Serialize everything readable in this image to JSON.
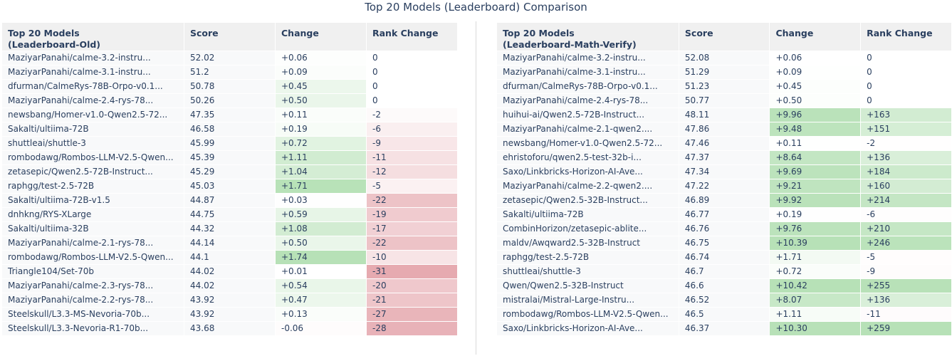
{
  "chart_data": {
    "type": "table",
    "title": "Top 20 Models (Leaderboard) Comparison",
    "colors": {
      "header_bg": "#f0f0f0",
      "cell_bg": "#f8f9fa",
      "positive_max": "#b7e1b7",
      "negative_max": "#e6aab0",
      "text": "#2a3f5f"
    },
    "tables": [
      {
        "header_model_lines": [
          "Top 20 Models",
          "(Leaderboard-Old)"
        ],
        "columns": [
          "Score",
          "Change",
          "Rank Change"
        ],
        "rows": [
          {
            "model": "MaziyarPanahi/calme-3.2-instru...",
            "score": "52.02",
            "change": "+0.06",
            "rank_change": "0"
          },
          {
            "model": "MaziyarPanahi/calme-3.1-instru...",
            "score": "51.2",
            "change": "+0.09",
            "rank_change": "0"
          },
          {
            "model": "dfurman/CalmeRys-78B-Orpo-v0.1...",
            "score": "50.78",
            "change": "+0.45",
            "rank_change": "0"
          },
          {
            "model": "MaziyarPanahi/calme-2.4-rys-78...",
            "score": "50.26",
            "change": "+0.50",
            "rank_change": "0"
          },
          {
            "model": "newsbang/Homer-v1.0-Qwen2.5-72...",
            "score": "47.35",
            "change": "+0.11",
            "rank_change": "-2"
          },
          {
            "model": "Sakalti/ultiima-72B",
            "score": "46.58",
            "change": "+0.19",
            "rank_change": "-6"
          },
          {
            "model": "shuttleai/shuttle-3",
            "score": "45.99",
            "change": "+0.72",
            "rank_change": "-9"
          },
          {
            "model": "rombodawg/Rombos-LLM-V2.5-Qwen...",
            "score": "45.39",
            "change": "+1.11",
            "rank_change": "-11"
          },
          {
            "model": "zetasepic/Qwen2.5-72B-Instruct...",
            "score": "45.29",
            "change": "+1.04",
            "rank_change": "-12"
          },
          {
            "model": "raphgg/test-2.5-72B",
            "score": "45.03",
            "change": "+1.71",
            "rank_change": "-5"
          },
          {
            "model": "Sakalti/ultiima-72B-v1.5",
            "score": "44.87",
            "change": "+0.03",
            "rank_change": "-22"
          },
          {
            "model": "dnhkng/RYS-XLarge",
            "score": "44.75",
            "change": "+0.59",
            "rank_change": "-19"
          },
          {
            "model": "Sakalti/ultiima-32B",
            "score": "44.32",
            "change": "+1.08",
            "rank_change": "-17"
          },
          {
            "model": "MaziyarPanahi/calme-2.1-rys-78...",
            "score": "44.14",
            "change": "+0.50",
            "rank_change": "-22"
          },
          {
            "model": "rombodawg/Rombos-LLM-V2.5-Qwen...",
            "score": "44.1",
            "change": "+1.74",
            "rank_change": "-10"
          },
          {
            "model": "Triangle104/Set-70b",
            "score": "44.02",
            "change": "+0.01",
            "rank_change": "-31"
          },
          {
            "model": "MaziyarPanahi/calme-2.3-rys-78...",
            "score": "44.02",
            "change": "+0.54",
            "rank_change": "-20"
          },
          {
            "model": "MaziyarPanahi/calme-2.2-rys-78...",
            "score": "43.92",
            "change": "+0.47",
            "rank_change": "-21"
          },
          {
            "model": "Steelskull/L3.3-MS-Nevoria-70b...",
            "score": "43.92",
            "change": "+0.13",
            "rank_change": "-27"
          },
          {
            "model": "Steelskull/L3.3-Nevoria-R1-70b...",
            "score": "43.68",
            "change": "-0.06",
            "rank_change": "-28"
          }
        ]
      },
      {
        "header_model_lines": [
          "Top 20 Models",
          "(Leaderboard-Math-Verify)"
        ],
        "columns": [
          "Score",
          "Change",
          "Rank Change"
        ],
        "rows": [
          {
            "model": "MaziyarPanahi/calme-3.2-instru...",
            "score": "52.08",
            "change": "+0.06",
            "rank_change": "0"
          },
          {
            "model": "MaziyarPanahi/calme-3.1-instru...",
            "score": "51.29",
            "change": "+0.09",
            "rank_change": "0"
          },
          {
            "model": "dfurman/CalmeRys-78B-Orpo-v0.1...",
            "score": "51.23",
            "change": "+0.45",
            "rank_change": "0"
          },
          {
            "model": "MaziyarPanahi/calme-2.4-rys-78...",
            "score": "50.77",
            "change": "+0.50",
            "rank_change": "0"
          },
          {
            "model": "huihui-ai/Qwen2.5-72B-Instruct...",
            "score": "48.11",
            "change": "+9.96",
            "rank_change": "+163"
          },
          {
            "model": "MaziyarPanahi/calme-2.1-qwen2....",
            "score": "47.86",
            "change": "+9.48",
            "rank_change": "+151"
          },
          {
            "model": "newsbang/Homer-v1.0-Qwen2.5-72...",
            "score": "47.46",
            "change": "+0.11",
            "rank_change": "-2"
          },
          {
            "model": "ehristoforu/qwen2.5-test-32b-i...",
            "score": "47.37",
            "change": "+8.64",
            "rank_change": "+136"
          },
          {
            "model": "Saxo/Linkbricks-Horizon-AI-Ave...",
            "score": "47.34",
            "change": "+9.69",
            "rank_change": "+184"
          },
          {
            "model": "MaziyarPanahi/calme-2.2-qwen2....",
            "score": "47.22",
            "change": "+9.21",
            "rank_change": "+160"
          },
          {
            "model": "zetasepic/Qwen2.5-32B-Instruct...",
            "score": "46.89",
            "change": "+9.92",
            "rank_change": "+214"
          },
          {
            "model": "Sakalti/ultiima-72B",
            "score": "46.77",
            "change": "+0.19",
            "rank_change": "-6"
          },
          {
            "model": "CombinHorizon/zetasepic-ablite...",
            "score": "46.76",
            "change": "+9.76",
            "rank_change": "+210"
          },
          {
            "model": "maldv/Awqward2.5-32B-Instruct",
            "score": "46.75",
            "change": "+10.39",
            "rank_change": "+246"
          },
          {
            "model": "raphgg/test-2.5-72B",
            "score": "46.74",
            "change": "+1.71",
            "rank_change": "-5"
          },
          {
            "model": "shuttleai/shuttle-3",
            "score": "46.7",
            "change": "+0.72",
            "rank_change": "-9"
          },
          {
            "model": "Qwen/Qwen2.5-32B-Instruct",
            "score": "46.6",
            "change": "+10.42",
            "rank_change": "+255"
          },
          {
            "model": "mistralai/Mistral-Large-Instru...",
            "score": "46.52",
            "change": "+8.07",
            "rank_change": "+136"
          },
          {
            "model": "rombodawg/Rombos-LLM-V2.5-Qwen...",
            "score": "46.5",
            "change": "+1.11",
            "rank_change": "-11"
          },
          {
            "model": "Saxo/Linkbricks-Horizon-AI-Ave...",
            "score": "46.37",
            "change": "+10.30",
            "rank_change": "+259"
          }
        ]
      }
    ]
  }
}
